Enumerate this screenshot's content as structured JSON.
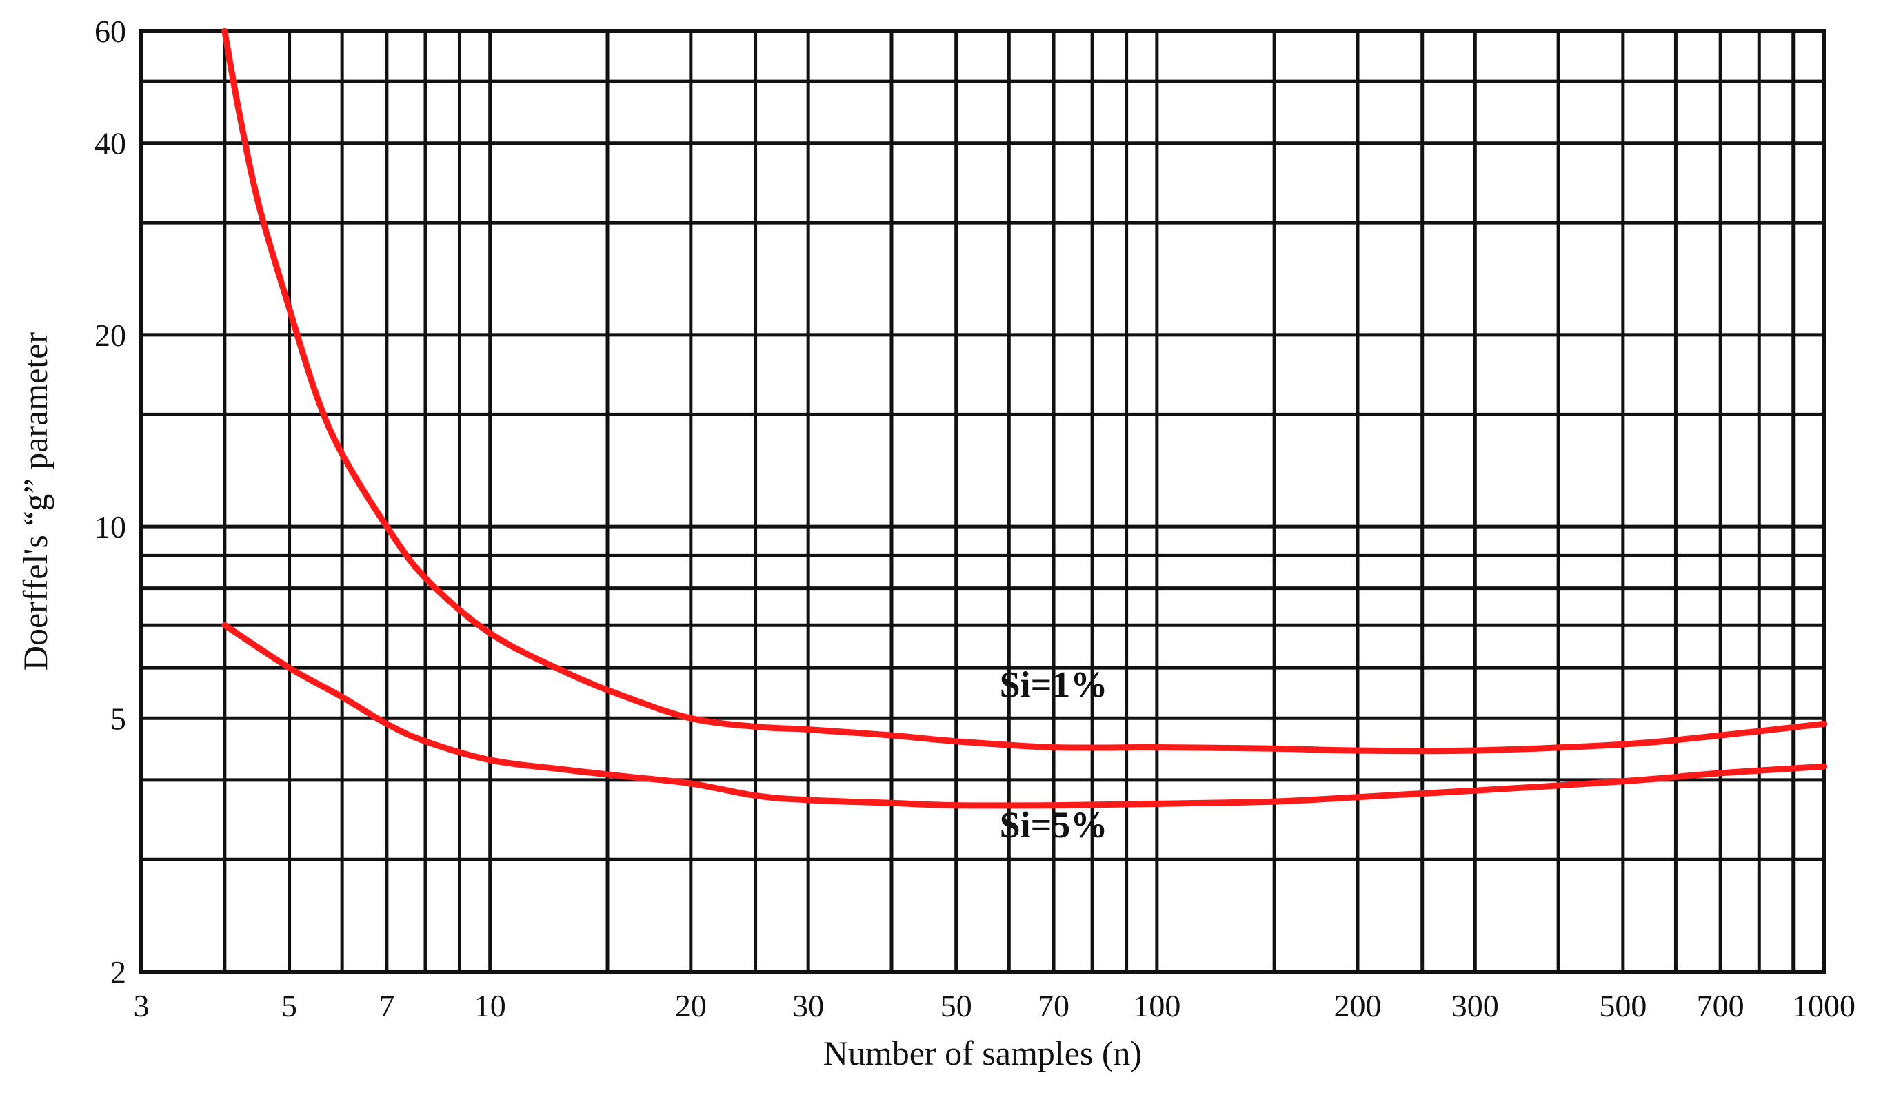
{
  "chart_data": {
    "type": "line",
    "title": "",
    "xlabel": "Number of samples (n)",
    "ylabel": "Doerffel's “g” parameter",
    "x_scale": "log",
    "y_scale": "log",
    "xlim": [
      3,
      1000
    ],
    "ylim": [
      2,
      60
    ],
    "grid": true,
    "x_ticks": [
      3,
      5,
      7,
      10,
      20,
      30,
      50,
      70,
      100,
      200,
      300,
      500,
      700,
      1000
    ],
    "x_tick_labels": [
      "3",
      "5",
      "7",
      "10",
      "20",
      "30",
      "50",
      "70",
      "100",
      "200",
      "300",
      "500",
      "700",
      "1000"
    ],
    "y_ticks": [
      2,
      5,
      10,
      20,
      40,
      60
    ],
    "y_tick_labels": [
      "2",
      "5",
      "10",
      "20",
      "40",
      "60"
    ],
    "x_gridlines": [
      4,
      5,
      6,
      7,
      8,
      9,
      10,
      15,
      20,
      25,
      30,
      40,
      50,
      60,
      70,
      80,
      90,
      100,
      150,
      200,
      250,
      300,
      400,
      500,
      600,
      700,
      800,
      900
    ],
    "y_gridlines": [
      3,
      4,
      5,
      6,
      7,
      8,
      9,
      10,
      15,
      20,
      30,
      40,
      50
    ],
    "series": [
      {
        "name": "Si=1%",
        "color": "#ff1a1a",
        "x": [
          4,
          4.2,
          4.5,
          5,
          5.5,
          6,
          7,
          8,
          10,
          13,
          16,
          20,
          25,
          30,
          40,
          50,
          70,
          100,
          150,
          200,
          300,
          500,
          700,
          1000
        ],
        "y": [
          60,
          45,
          32,
          22,
          16,
          13,
          10,
          8.3,
          6.8,
          5.9,
          5.4,
          5.0,
          4.85,
          4.8,
          4.7,
          4.6,
          4.5,
          4.5,
          4.48,
          4.45,
          4.45,
          4.55,
          4.7,
          4.9
        ]
      },
      {
        "name": "Si=5%",
        "color": "#ff1a1a",
        "x": [
          4,
          5,
          6,
          7,
          8,
          10,
          13,
          16,
          20,
          25,
          30,
          40,
          50,
          70,
          100,
          150,
          200,
          300,
          500,
          700,
          1000
        ],
        "y": [
          7.0,
          6.0,
          5.4,
          4.9,
          4.6,
          4.3,
          4.15,
          4.05,
          3.95,
          3.78,
          3.72,
          3.68,
          3.65,
          3.65,
          3.67,
          3.7,
          3.76,
          3.85,
          3.98,
          4.1,
          4.2
        ]
      }
    ],
    "annotations": [
      {
        "text": "Si=1%",
        "series": "Si=1%",
        "anchor_x": 70,
        "anchor_y": 5.4
      },
      {
        "text": "Si=5%",
        "series": "Si=5%",
        "anchor_x": 70,
        "anchor_y": 3.25
      }
    ]
  }
}
